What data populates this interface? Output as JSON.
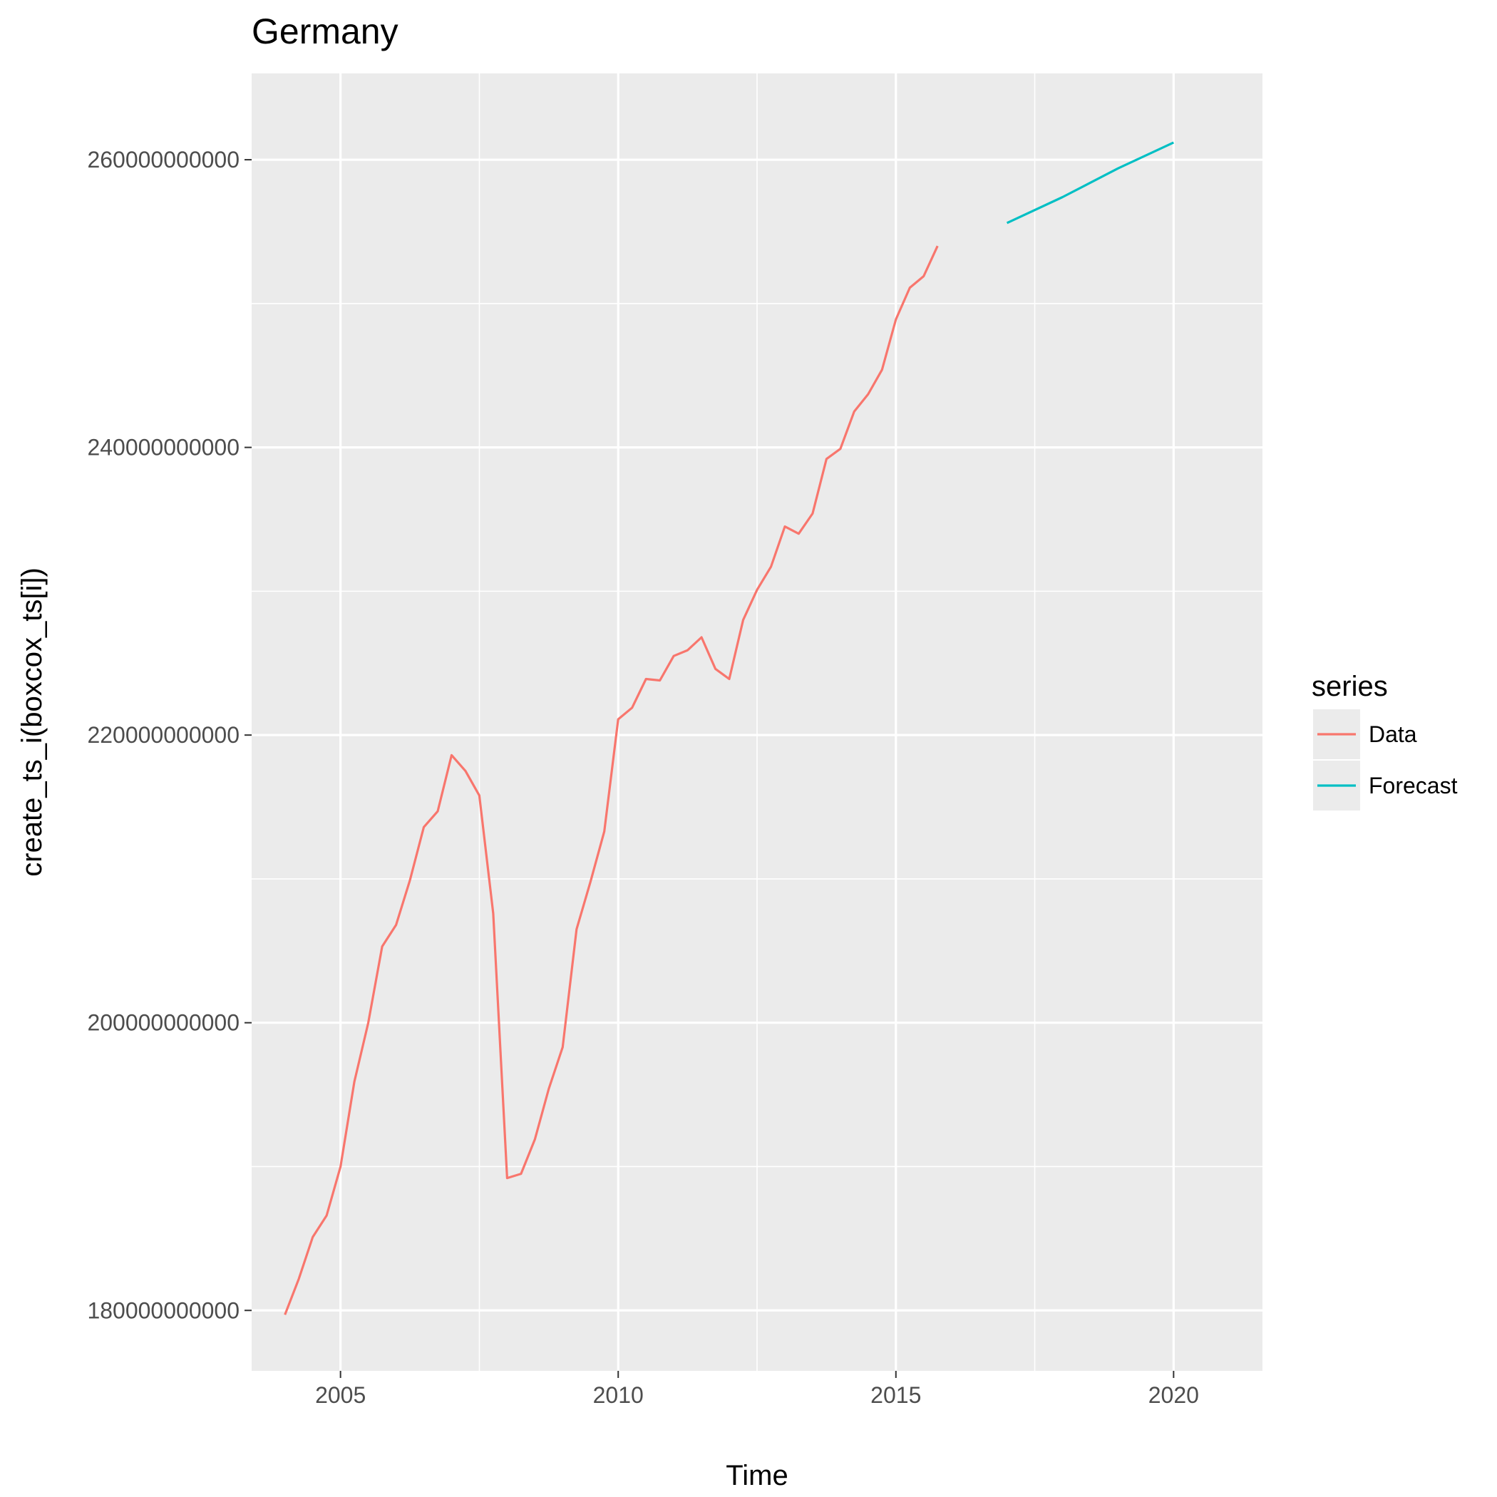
{
  "colors": {
    "panel_bg": "#EBEBEB",
    "grid": "#FFFFFF",
    "tick_text": "#4D4D4D",
    "tick_mark": "#333333",
    "data": "#F8766D",
    "forecast": "#00BFC4"
  },
  "chart_data": {
    "type": "line",
    "title": "Germany",
    "xlabel": "Time",
    "ylabel": "create_ts_i(boxcox_ts[i])",
    "xlim": [
      2003.4,
      2021.6
    ],
    "ylim": [
      175800000000,
      266000000000
    ],
    "x_ticks": [
      2005,
      2010,
      2015,
      2020
    ],
    "x_tick_labels": [
      "2005",
      "2010",
      "2015",
      "2020"
    ],
    "x_minor_ticks": [
      2007.5,
      2012.5,
      2017.5
    ],
    "y_ticks": [
      180000000000,
      200000000000,
      220000000000,
      240000000000,
      260000000000
    ],
    "y_tick_labels": [
      "180000000000",
      "200000000000",
      "220000000000",
      "240000000000",
      "260000000000"
    ],
    "y_minor_ticks": [
      190000000000,
      210000000000,
      230000000000,
      250000000000
    ],
    "grid": true,
    "legend": {
      "title": "series",
      "position": "right"
    },
    "series": [
      {
        "name": "Data",
        "color": "#F8766D",
        "x": [
          2004.0,
          2004.25,
          2004.5,
          2004.75,
          2005.0,
          2005.25,
          2005.5,
          2005.75,
          2006.0,
          2006.25,
          2006.5,
          2006.75,
          2007.0,
          2007.25,
          2007.5,
          2007.75,
          2008.0,
          2008.25,
          2008.5,
          2008.75,
          2009.0,
          2009.25,
          2009.5,
          2009.75,
          2010.0,
          2010.25,
          2010.5,
          2010.75,
          2011.0,
          2011.25,
          2011.5,
          2011.75,
          2012.0,
          2012.25,
          2012.5,
          2012.75,
          2013.0,
          2013.25,
          2013.5,
          2013.75,
          2014.0,
          2014.25,
          2014.5,
          2014.75,
          2015.0,
          2015.25,
          2015.5,
          2015.75
        ],
        "values": [
          179700000000,
          182200000000,
          185100000000,
          186600000000,
          190000000000,
          195900000000,
          200000000000,
          205300000000,
          206800000000,
          209900000000,
          213600000000,
          214700000000,
          218600000000,
          217500000000,
          215800000000,
          207600000000,
          189200000000,
          189500000000,
          191900000000,
          195400000000,
          198300000000,
          206500000000,
          209800000000,
          213300000000,
          221100000000,
          221900000000,
          223900000000,
          223800000000,
          225500000000,
          225900000000,
          226800000000,
          224600000000,
          223900000000,
          228000000000,
          230100000000,
          231700000000,
          234500000000,
          234000000000,
          235400000000,
          239200000000,
          239900000000,
          242500000000,
          243700000000,
          245400000000,
          248900000000,
          251100000000,
          251900000000,
          254000000000
        ]
      },
      {
        "name": "Forecast",
        "color": "#00BFC4",
        "x": [
          2017.0,
          2018.0,
          2019.0,
          2020.0
        ],
        "values": [
          255600000000,
          257400000000,
          259400000000,
          261200000000
        ]
      }
    ]
  }
}
